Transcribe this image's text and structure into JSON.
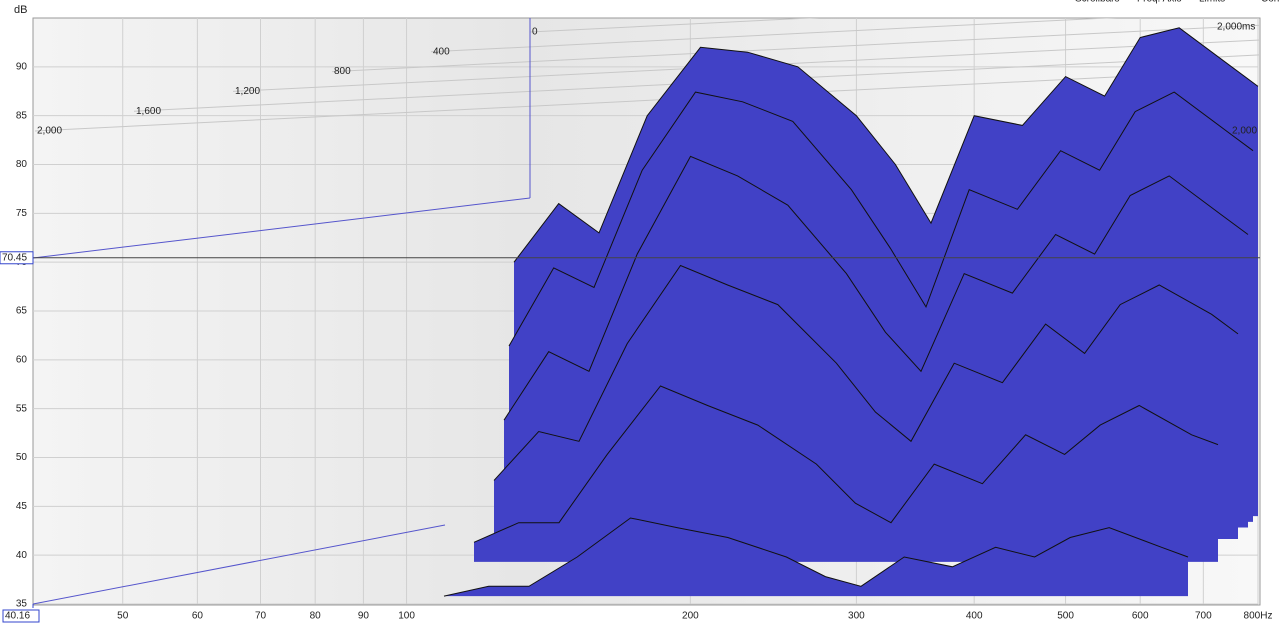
{
  "chart_data": {
    "type": "waterfall",
    "y_unit": "dB",
    "menu": [
      "Scrollbars",
      "Freq. Axis",
      "Limits",
      "Controls"
    ],
    "xlim": [
      40.16,
      800
    ],
    "xticks": [
      50,
      60,
      70,
      80,
      90,
      100,
      200,
      300,
      400,
      500,
      600,
      700,
      {
        "value": 800,
        "label": "800Hz"
      }
    ],
    "log_x": true,
    "ylim": [
      35,
      95
    ],
    "yticks": [
      35,
      40,
      45,
      50,
      55,
      60,
      65,
      70,
      75,
      80,
      85,
      90
    ],
    "zlim": [
      0,
      2000
    ],
    "zticks": [
      0,
      400,
      800,
      {
        "value": 1200,
        "label": "1,200"
      },
      {
        "value": 1600,
        "label": "1,600"
      },
      {
        "value": 2000,
        "label": "2,000"
      }
    ],
    "z_corner_labels": [
      "2,000ms",
      "2,000"
    ],
    "y_cursor": 70.45,
    "x_cursor": 40.16,
    "grid": true,
    "color": "#4141c6",
    "x": [
      130,
      145,
      160,
      180,
      205,
      230,
      260,
      300,
      330,
      360,
      400,
      450,
      500,
      550,
      600,
      660,
      750,
      800
    ],
    "series": [
      {
        "time": 0,
        "values": [
          70,
          76,
          73,
          85,
          92,
          91.5,
          90,
          85,
          80,
          74,
          85,
          84,
          89,
          87,
          93,
          94,
          90,
          88
        ]
      },
      {
        "time": 100,
        "values": [
          62,
          70,
          68,
          80,
          88,
          87,
          85,
          78,
          72,
          66,
          78,
          76,
          82,
          80,
          86,
          88,
          84,
          82
        ]
      },
      {
        "time": 200,
        "values": [
          55,
          62,
          60,
          72,
          82,
          80,
          77,
          70,
          64,
          60,
          70,
          68,
          74,
          72,
          78,
          80,
          76,
          74
        ]
      },
      {
        "time": 400,
        "values": [
          50,
          55,
          54,
          64,
          72,
          70,
          68,
          62,
          57,
          54,
          62,
          60,
          66,
          63,
          68,
          70,
          67,
          65
        ]
      },
      {
        "time": 800,
        "values": [
          46,
          48,
          48,
          55,
          62,
          60,
          58,
          54,
          50,
          48,
          54,
          52,
          57,
          55,
          58,
          60,
          57,
          56
        ]
      },
      {
        "time": 1400,
        "values": [
          44,
          45,
          45,
          48,
          52,
          51,
          50,
          48,
          46,
          45,
          48,
          47,
          49,
          48,
          50,
          51,
          49,
          48
        ]
      }
    ]
  }
}
